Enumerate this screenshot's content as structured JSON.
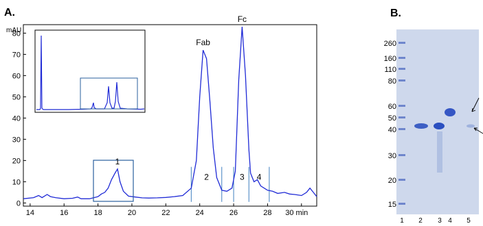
{
  "panels": {
    "a_label": "A.",
    "b_label": "B."
  },
  "chart_data": {
    "type": "line",
    "title": "",
    "xlabel": "min",
    "ylabel": "mAU",
    "xlim": [
      13.6,
      30.9
    ],
    "ylim": [
      -1.5,
      84
    ],
    "x_ticks": [
      14,
      16,
      18,
      20,
      22,
      24,
      26,
      28,
      30
    ],
    "x_tick_labels": [
      "14",
      "16",
      "18",
      "20",
      "22",
      "24",
      "26",
      "28",
      "30 min"
    ],
    "y_ticks": [
      0,
      10,
      20,
      30,
      40,
      50,
      60,
      70,
      80
    ],
    "y_tick_labels": [
      "0",
      "10",
      "20",
      "30",
      "40",
      "50",
      "60",
      "70",
      "80"
    ],
    "grid": false,
    "series": [
      {
        "values": [
          [
            13.6,
            2
          ],
          [
            14.2,
            2.5
          ],
          [
            14.5,
            3.5
          ],
          [
            14.7,
            2.5
          ],
          [
            15.0,
            4
          ],
          [
            15.2,
            3
          ],
          [
            15.5,
            2.5
          ],
          [
            16.0,
            2
          ],
          [
            16.5,
            2.2
          ],
          [
            16.8,
            2.8
          ],
          [
            17.0,
            2
          ],
          [
            17.5,
            2
          ],
          [
            18.0,
            3
          ],
          [
            18.2,
            4.2
          ],
          [
            18.4,
            5
          ],
          [
            18.6,
            7
          ],
          [
            18.8,
            11
          ],
          [
            19.0,
            14
          ],
          [
            19.15,
            16
          ],
          [
            19.3,
            10
          ],
          [
            19.5,
            5.5
          ],
          [
            19.8,
            3.2
          ],
          [
            20.2,
            2.8
          ],
          [
            20.6,
            2.4
          ],
          [
            21.0,
            2.3
          ],
          [
            21.5,
            2.4
          ],
          [
            22.0,
            2.6
          ],
          [
            22.5,
            3
          ],
          [
            23.0,
            3.5
          ],
          [
            23.5,
            7
          ],
          [
            23.8,
            20
          ],
          [
            24.0,
            50
          ],
          [
            24.2,
            72
          ],
          [
            24.4,
            68
          ],
          [
            24.6,
            48
          ],
          [
            24.8,
            26
          ],
          [
            25.0,
            12
          ],
          [
            25.3,
            6
          ],
          [
            25.6,
            5.5
          ],
          [
            25.9,
            7
          ],
          [
            26.1,
            15
          ],
          [
            26.3,
            58
          ],
          [
            26.5,
            83
          ],
          [
            26.7,
            60
          ],
          [
            26.9,
            25
          ],
          [
            27.0,
            14
          ],
          [
            27.2,
            10
          ],
          [
            27.4,
            11
          ],
          [
            27.6,
            8
          ],
          [
            27.8,
            7
          ],
          [
            28.0,
            6
          ],
          [
            28.3,
            5.5
          ],
          [
            28.6,
            4.5
          ],
          [
            29.0,
            5
          ],
          [
            29.3,
            4.2
          ],
          [
            29.6,
            4
          ],
          [
            30.0,
            3.5
          ],
          [
            30.3,
            5
          ],
          [
            30.5,
            7
          ],
          [
            30.7,
            5
          ],
          [
            30.9,
            3
          ]
        ]
      }
    ],
    "peak_labels": [
      {
        "text": "1",
        "x": 19.15,
        "y": 16
      },
      {
        "text": "Fab",
        "x": 24.2,
        "y": 72
      },
      {
        "text": "Fc",
        "x": 26.5,
        "y": 83
      },
      {
        "text": "2",
        "x": 24.4,
        "y": 10
      },
      {
        "text": "3",
        "x": 26.5,
        "y": 10
      },
      {
        "text": "4",
        "x": 27.5,
        "y": 10
      }
    ],
    "fraction_markers_x": [
      23.5,
      25.3,
      26.0,
      26.9,
      28.1
    ]
  },
  "gel": {
    "markers_kda": [
      "260",
      "160",
      "110",
      "80",
      "60",
      "50",
      "40",
      "30",
      "20",
      "15"
    ],
    "lanes": [
      "1",
      "2",
      "3",
      "4",
      "5"
    ]
  }
}
